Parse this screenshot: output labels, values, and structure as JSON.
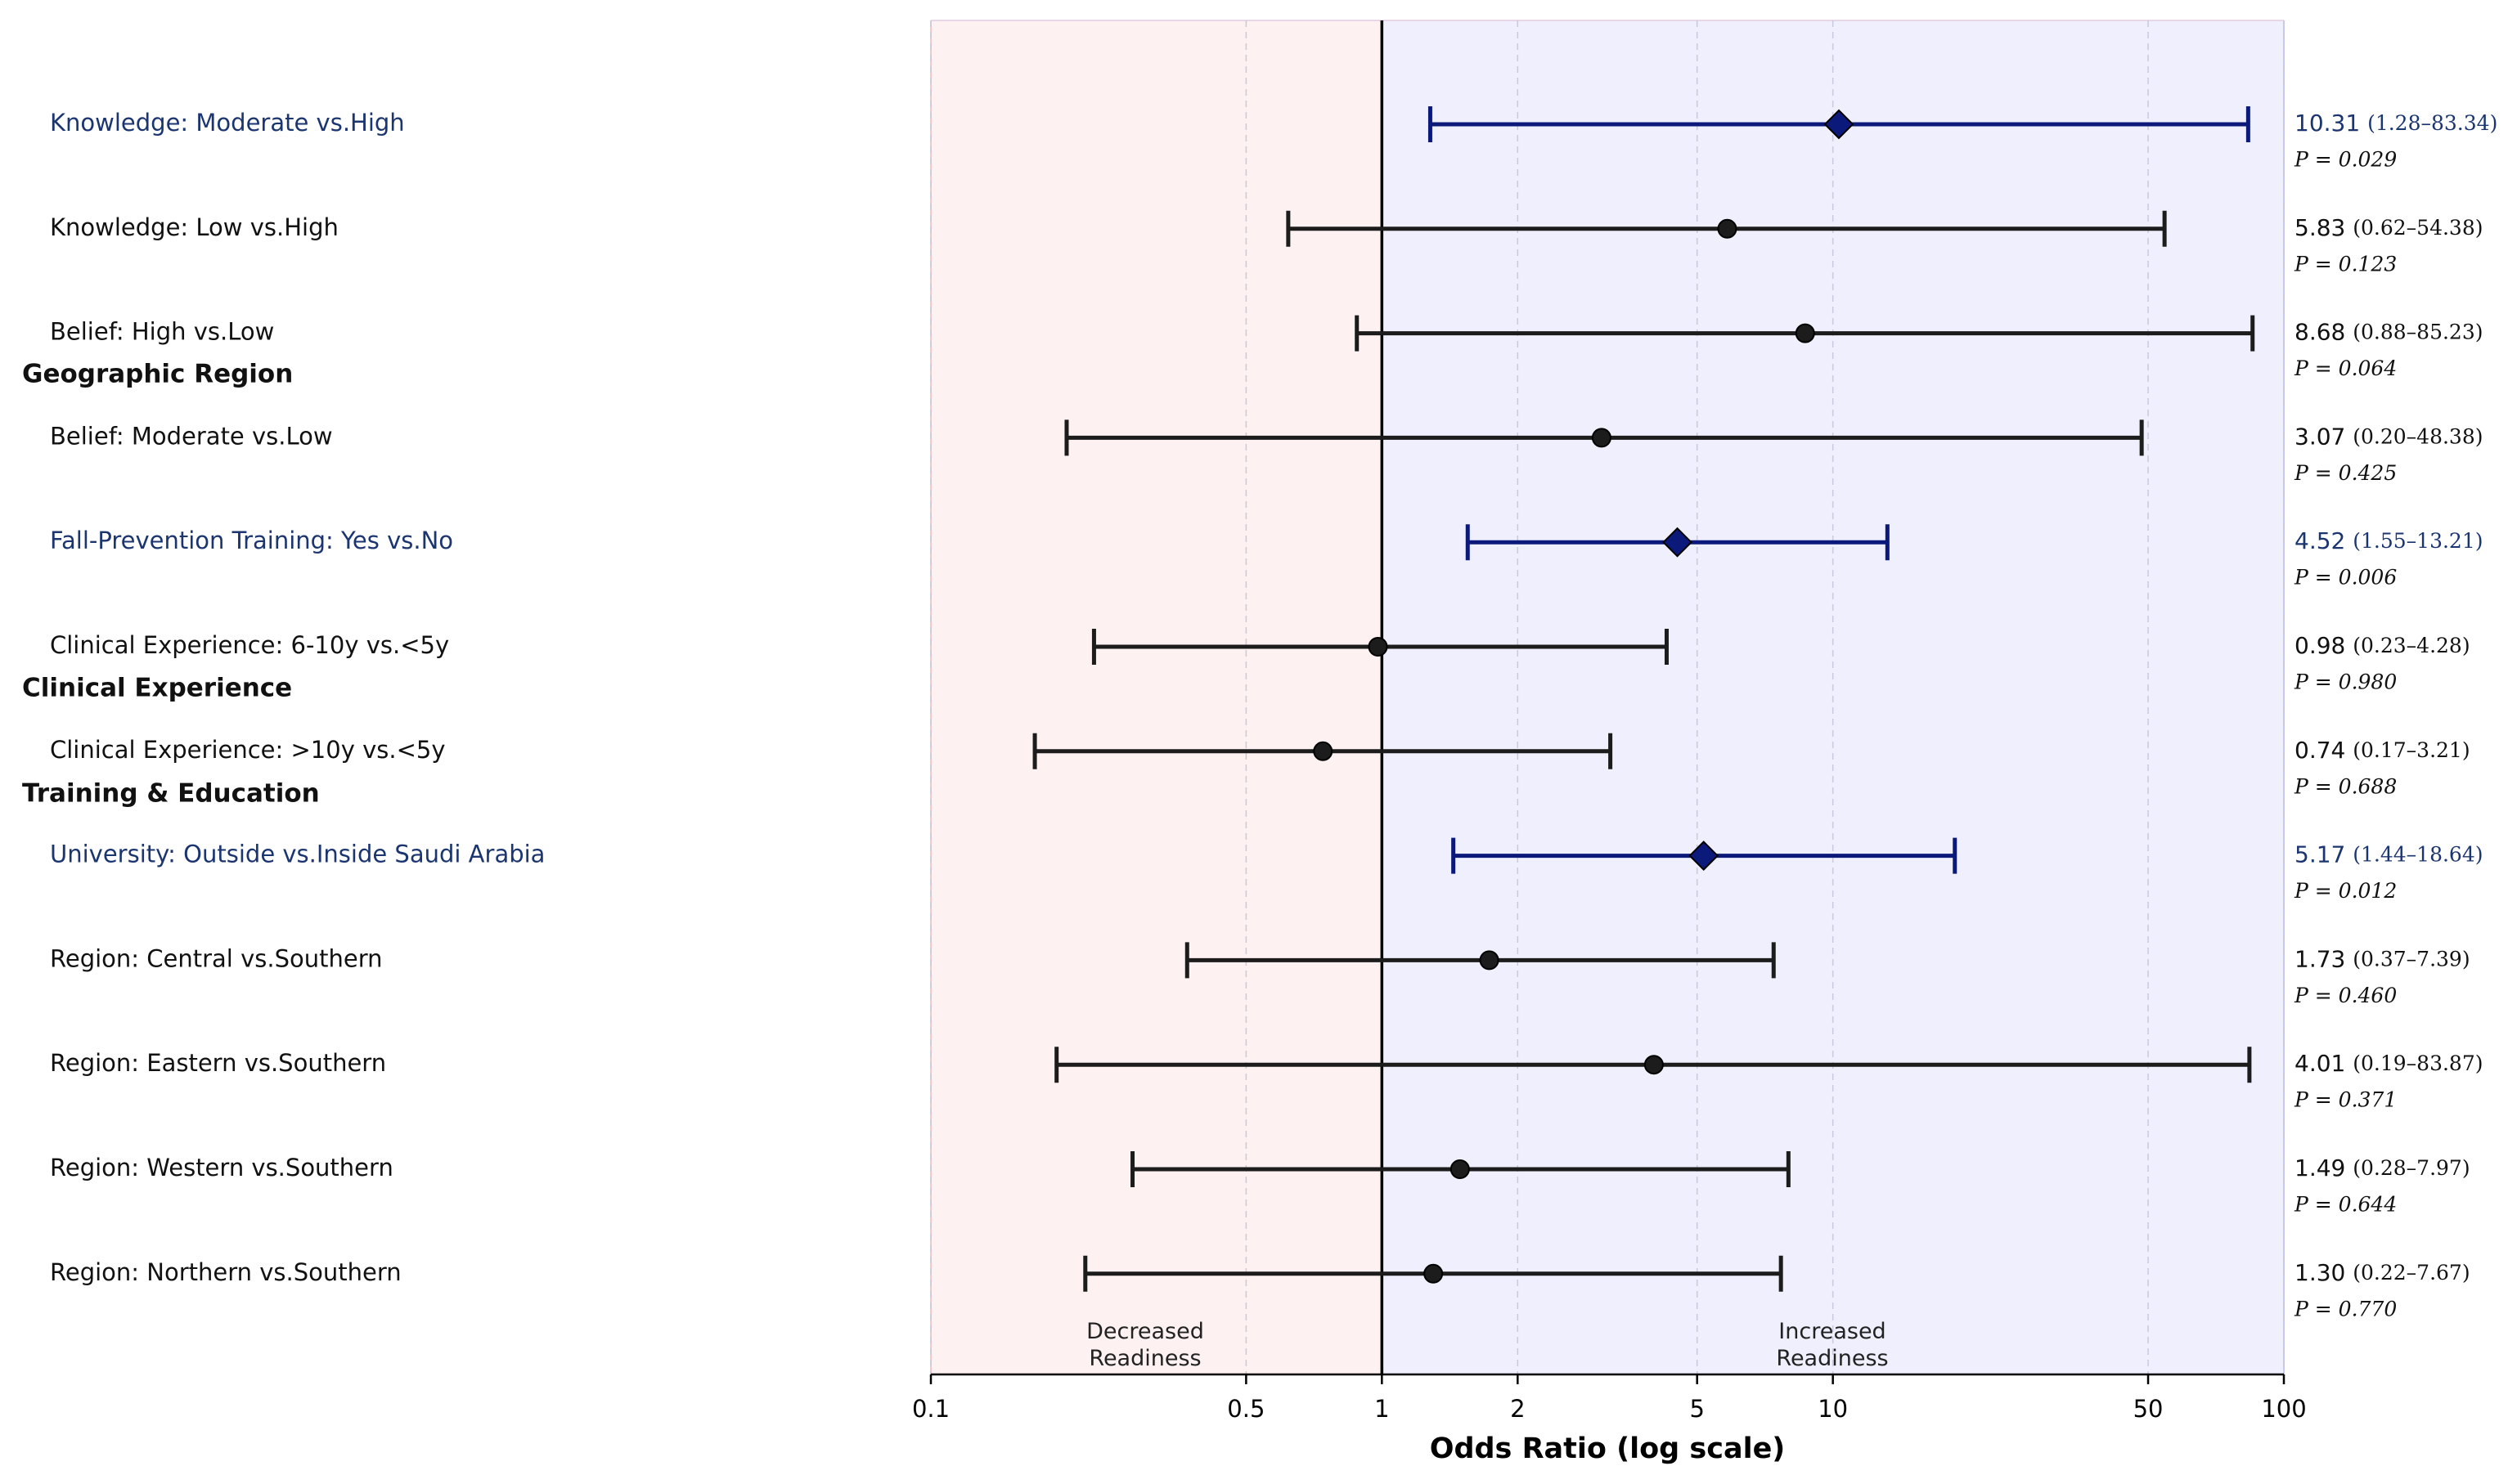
{
  "chart_data": {
    "type": "forest",
    "xlabel": "Odds Ratio (log scale)",
    "log_scale": true,
    "xlim": [
      0.1,
      100
    ],
    "xticks": [
      0.1,
      0.5,
      1,
      2,
      5,
      10,
      50,
      100
    ],
    "reference": 1,
    "grid": true,
    "color": "#1c1c1c",
    "highlight_color": "#0b1a7a",
    "label_highlight_color": "#1b3570",
    "left_fill": "#fdf1f1",
    "right_fill": "#efeffd",
    "categories": [
      "Knowledge: Moderate vs.High",
      "Knowledge: Low vs.High",
      "Belief: High vs.Low",
      "Belief: Moderate vs.Low",
      "Fall-Prevention Training: Yes vs.No",
      "Clinical Experience: 6-10y vs.<5y",
      "Clinical Experience: >10y vs.<5y",
      "University: Outside vs.Inside Saudi Arabia",
      "Region: Central vs.Southern",
      "Region: Eastern vs.Southern",
      "Region: Western vs.Southern",
      "Region: Northern vs.Southern"
    ],
    "values": [
      10.31,
      5.83,
      8.68,
      3.07,
      4.52,
      0.98,
      0.74,
      5.17,
      1.73,
      4.01,
      1.49,
      1.3
    ],
    "value_labels": [
      "10.31",
      "5.83",
      "8.68",
      "3.07",
      "4.52",
      "0.98",
      "0.74",
      "5.17",
      "1.73",
      "4.01",
      "1.49",
      "1.30"
    ],
    "lower": [
      1.28,
      0.62,
      0.88,
      0.2,
      1.55,
      0.23,
      0.17,
      1.44,
      0.37,
      0.19,
      0.28,
      0.22
    ],
    "upper": [
      83.34,
      54.38,
      85.23,
      48.38,
      13.21,
      4.28,
      3.21,
      18.64,
      7.39,
      83.87,
      7.97,
      7.67
    ],
    "ci_labels": [
      "(1.28–83.34)",
      "(0.62–54.38)",
      "(0.88–85.23)",
      "(0.20–48.38)",
      "(1.55–13.21)",
      "(0.23–4.28)",
      "(0.17–3.21)",
      "(1.44–18.64)",
      "(0.37–7.39)",
      "(0.19–83.87)",
      "(0.28–7.97)",
      "(0.22–7.67)"
    ],
    "p_labels": [
      "P = 0.029",
      "P = 0.123",
      "P = 0.064",
      "P = 0.425",
      "P = 0.006",
      "P = 0.980",
      "P = 0.688",
      "P = 0.012",
      "P = 0.460",
      "P = 0.371",
      "P = 0.644",
      "P = 0.770"
    ],
    "significant": [
      true,
      false,
      false,
      false,
      true,
      false,
      false,
      true,
      false,
      false,
      false,
      false
    ],
    "groups": [
      "Geographic Region",
      "Clinical Experience",
      "Training & Education"
    ],
    "annotations": [
      "Decreased Readiness",
      "Increased Readiness"
    ]
  }
}
